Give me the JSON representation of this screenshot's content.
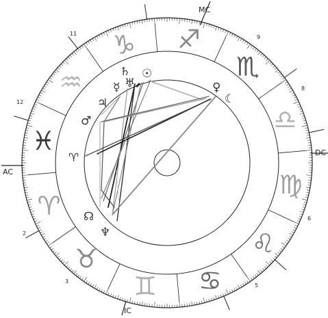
{
  "chart": {
    "angles": {
      "mc": "MC",
      "ic": "IC",
      "ac": "AC",
      "dc": "DC"
    },
    "house_numbers": [
      "2",
      "3",
      "5",
      "6",
      "8",
      "9",
      "11",
      "12"
    ],
    "zodiac_signs": [
      {
        "name": "taurus-icon",
        "glyph": "♉",
        "color": "#8a8a8a"
      },
      {
        "name": "gemini-icon",
        "glyph": "♊",
        "color": "#b0b0b0"
      },
      {
        "name": "cancer-icon",
        "glyph": "♋",
        "color": "#6a6a6a"
      },
      {
        "name": "leo-icon",
        "glyph": "♌",
        "color": "#7a7a7a"
      },
      {
        "name": "virgo-icon",
        "glyph": "♍",
        "color": "#a0a0a0"
      },
      {
        "name": "libra-icon",
        "glyph": "♎",
        "color": "#b5b5b5"
      },
      {
        "name": "scorpio-icon",
        "glyph": "♏",
        "color": "#5a5a5a"
      },
      {
        "name": "sagittarius-icon",
        "glyph": "♐",
        "color": "#8a8a8a"
      },
      {
        "name": "capricorn-icon",
        "glyph": "♑",
        "color": "#9a9a9a"
      },
      {
        "name": "aquarius-icon",
        "glyph": "♒",
        "color": "#b8b8b8"
      },
      {
        "name": "pisces-icon",
        "glyph": "♓",
        "color": "#3a3a3a"
      },
      {
        "name": "aries-icon",
        "glyph": "♈",
        "color": "#a0a0a0"
      }
    ],
    "planets": [
      {
        "name": "sun-icon",
        "glyph": "☉"
      },
      {
        "name": "uranus-icon",
        "glyph": "♅"
      },
      {
        "name": "saturn-icon",
        "glyph": "♄"
      },
      {
        "name": "mercury-icon",
        "glyph": "☿"
      },
      {
        "name": "jupiter-icon",
        "glyph": "♃"
      },
      {
        "name": "mars-icon",
        "glyph": "♂"
      },
      {
        "name": "aries-point-icon",
        "glyph": "♈"
      },
      {
        "name": "north-node-icon",
        "glyph": "☊"
      },
      {
        "name": "neptune-icon",
        "glyph": "♆"
      },
      {
        "name": "venus-icon",
        "glyph": "♀"
      },
      {
        "name": "moon-icon",
        "glyph": "☾"
      }
    ]
  }
}
